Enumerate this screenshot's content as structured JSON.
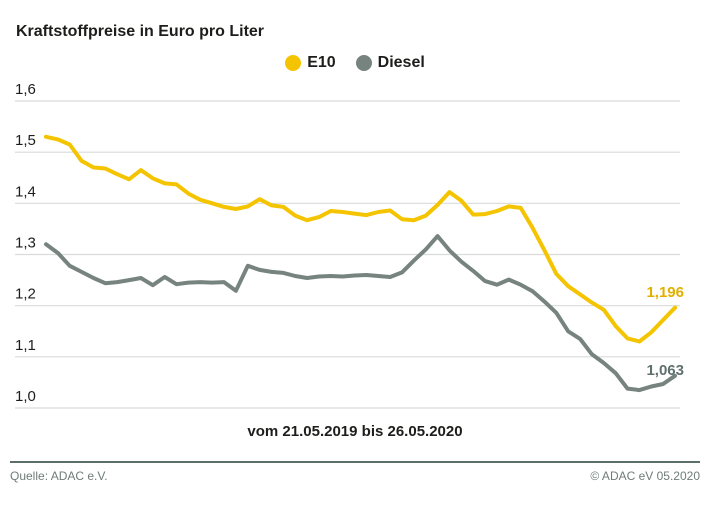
{
  "title": "Kraftstoffpreise in Euro pro Liter",
  "legend": {
    "e10": "E10",
    "diesel": "Diesel"
  },
  "caption": "vom 21.05.2019 bis 26.05.2020",
  "end_labels": {
    "e10": "1,196",
    "diesel": "1,063"
  },
  "footer": {
    "source": "Quelle: ADAC e.V.",
    "copyright": "© ADAC eV 05.2020"
  },
  "colors": {
    "e10_line": "#F5C400",
    "e10_label": "#E2AF00",
    "diesel_line": "#76837E",
    "diesel_label": "#60706C",
    "grid": "#D8DCDA",
    "divider": "#5D6F6B",
    "text": "#1D1D1B",
    "footer_text": "#6F7C79"
  },
  "chart_data": {
    "type": "line",
    "title": "Kraftstoffpreise in Euro pro Liter",
    "x_caption": "vom 21.05.2019 bis 26.05.2020",
    "x_range": [
      "21.05.2019",
      "26.05.2020"
    ],
    "x_interval": "weekly",
    "ylabel": "Euro pro Liter",
    "ylim": [
      1.0,
      1.6
    ],
    "grid": "horizontal",
    "legend_position": "top-center",
    "yticks": [
      {
        "value": 1.0,
        "label": "1,0"
      },
      {
        "value": 1.1,
        "label": "1,1"
      },
      {
        "value": 1.2,
        "label": "1,2"
      },
      {
        "value": 1.3,
        "label": "1,3"
      },
      {
        "value": 1.4,
        "label": "1,4"
      },
      {
        "value": 1.5,
        "label": "1,5"
      },
      {
        "value": 1.6,
        "label": "1,6"
      }
    ],
    "series": [
      {
        "name": "E10",
        "color": "#F5C400",
        "last_value_label": "1,196",
        "values": [
          1.53,
          1.525,
          1.515,
          1.483,
          1.47,
          1.468,
          1.457,
          1.447,
          1.465,
          1.449,
          1.439,
          1.437,
          1.419,
          1.407,
          1.4,
          1.393,
          1.389,
          1.394,
          1.408,
          1.396,
          1.393,
          1.376,
          1.367,
          1.373,
          1.385,
          1.383,
          1.38,
          1.377,
          1.383,
          1.386,
          1.369,
          1.367,
          1.376,
          1.397,
          1.422,
          1.405,
          1.378,
          1.379,
          1.385,
          1.394,
          1.391,
          1.352,
          1.308,
          1.262,
          1.238,
          1.222,
          1.206,
          1.192,
          1.16,
          1.136,
          1.13,
          1.148,
          1.172,
          1.196
        ]
      },
      {
        "name": "Diesel",
        "color": "#76837E",
        "last_value_label": "1,063",
        "values": [
          1.32,
          1.303,
          1.278,
          1.266,
          1.254,
          1.244,
          1.246,
          1.25,
          1.254,
          1.24,
          1.256,
          1.242,
          1.245,
          1.246,
          1.245,
          1.246,
          1.229,
          1.278,
          1.27,
          1.266,
          1.264,
          1.258,
          1.254,
          1.257,
          1.258,
          1.257,
          1.259,
          1.26,
          1.258,
          1.256,
          1.265,
          1.288,
          1.31,
          1.336,
          1.308,
          1.286,
          1.268,
          1.248,
          1.241,
          1.251,
          1.241,
          1.228,
          1.208,
          1.186,
          1.15,
          1.135,
          1.105,
          1.088,
          1.068,
          1.038,
          1.035,
          1.042,
          1.047,
          1.063
        ]
      }
    ]
  }
}
